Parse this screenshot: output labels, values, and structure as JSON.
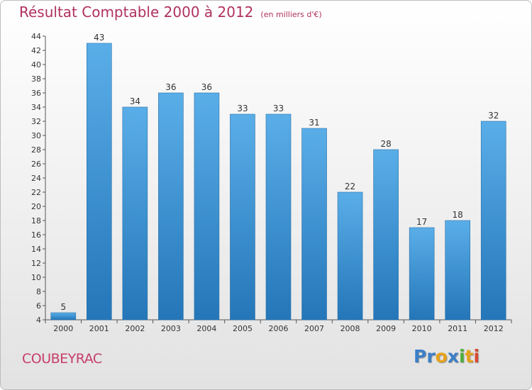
{
  "header": {
    "title": "Résultat Comptable 2000 à 2012",
    "subtitle": "(en milliers d'€)"
  },
  "footer": {
    "place": "COUBEYRAC",
    "logo": "Proxiti"
  },
  "colors": {
    "title": "#b0305f",
    "bar_top": "#5aaee8",
    "bar_bottom": "#2476b8",
    "logo_letters": [
      "#3a7fc8",
      "#3a7fc8",
      "#e6a21a",
      "#3a7fc8",
      "#4fae3a",
      "#e6a21a",
      "#d94a33"
    ]
  },
  "chart_data": {
    "type": "bar",
    "title": "Résultat Comptable 2000 à 2012",
    "subtitle": "(en milliers d'€)",
    "categories": [
      "2000",
      "2001",
      "2002",
      "2003",
      "2004",
      "2005",
      "2006",
      "2007",
      "2008",
      "2009",
      "2010",
      "2011",
      "2012"
    ],
    "values": [
      5,
      43,
      34,
      36,
      36,
      33,
      33,
      31,
      22,
      28,
      17,
      18,
      32
    ],
    "ylim": [
      4,
      44
    ],
    "yticks": [
      4,
      6,
      8,
      10,
      12,
      14,
      16,
      18,
      20,
      22,
      24,
      26,
      28,
      30,
      32,
      34,
      36,
      38,
      40,
      42,
      44
    ],
    "grid": false,
    "legend": "none"
  }
}
